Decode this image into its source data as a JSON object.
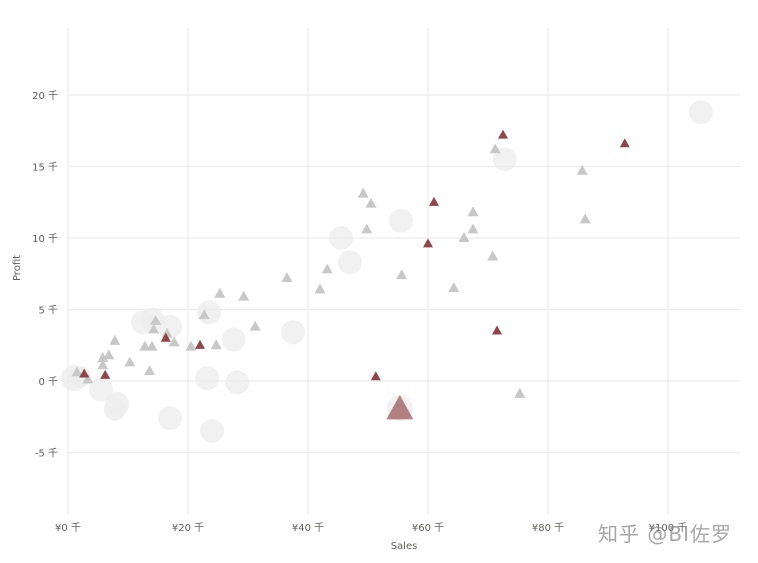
{
  "chart_data": {
    "type": "scatter",
    "title": "",
    "xlabel": "Sales",
    "ylabel": "Profit",
    "xlim": [
      0,
      112
    ],
    "ylim": [
      -9.5,
      25
    ],
    "x_unit": "thousand",
    "y_unit": "thousand",
    "x_ticks": [
      "¥0 千",
      "¥20 千",
      "¥40 千",
      "¥60 千",
      "¥80 千",
      "¥100 千"
    ],
    "x_tick_values": [
      0,
      20,
      40,
      60,
      80,
      100
    ],
    "y_ticks": [
      "20 千",
      "15 千",
      "10 千",
      "5 千",
      "0 千",
      "-5 千"
    ],
    "y_tick_values": [
      20,
      15,
      10,
      5,
      0,
      -5
    ],
    "grid": true,
    "legend": null,
    "colors": {
      "highlight": "#8b3a3f",
      "triangle_gray": "#c8c8c8",
      "bubble_gray": "#ececec",
      "grid": "#ececec",
      "tick_text": "#605e5c"
    },
    "series": [
      {
        "name": "bubbles",
        "marker": "circle",
        "points": [
          {
            "x": 1.0,
            "y": 0.2,
            "r": 13
          },
          {
            "x": 2.0,
            "y": 0.3,
            "r": 11
          },
          {
            "x": 5.5,
            "y": -0.6,
            "r": 12
          },
          {
            "x": 8.2,
            "y": -1.6,
            "r": 12
          },
          {
            "x": 7.8,
            "y": -2.0,
            "r": 11
          },
          {
            "x": 12.5,
            "y": 4.1,
            "r": 12
          },
          {
            "x": 14.0,
            "y": 4.3,
            "r": 12
          },
          {
            "x": 17.0,
            "y": 3.8,
            "r": 12
          },
          {
            "x": 17.0,
            "y": -2.6,
            "r": 12
          },
          {
            "x": 23.5,
            "y": 4.8,
            "r": 12
          },
          {
            "x": 23.2,
            "y": 0.2,
            "r": 12
          },
          {
            "x": 24.0,
            "y": -3.5,
            "r": 12
          },
          {
            "x": 27.6,
            "y": 2.9,
            "r": 12
          },
          {
            "x": 28.2,
            "y": -0.1,
            "r": 12
          },
          {
            "x": 37.5,
            "y": 3.4,
            "r": 12
          },
          {
            "x": 45.5,
            "y": 10.0,
            "r": 12
          },
          {
            "x": 47.0,
            "y": 8.3,
            "r": 12
          },
          {
            "x": 55.5,
            "y": 11.2,
            "r": 12
          },
          {
            "x": 55.3,
            "y": -1.9,
            "r": 13
          },
          {
            "x": 72.8,
            "y": 15.5,
            "r": 12
          },
          {
            "x": 105.5,
            "y": 18.8,
            "r": 12
          }
        ]
      },
      {
        "name": "gray triangles",
        "marker": "triangle",
        "points": [
          {
            "x": 1.5,
            "y": 0.6
          },
          {
            "x": 3.3,
            "y": 0.1
          },
          {
            "x": 5.8,
            "y": 1.6
          },
          {
            "x": 5.8,
            "y": 1.1
          },
          {
            "x": 6.8,
            "y": 1.8
          },
          {
            "x": 7.8,
            "y": 2.8
          },
          {
            "x": 10.3,
            "y": 1.3
          },
          {
            "x": 12.8,
            "y": 2.4
          },
          {
            "x": 13.6,
            "y": 0.7
          },
          {
            "x": 14.0,
            "y": 2.4
          },
          {
            "x": 14.3,
            "y": 3.6
          },
          {
            "x": 14.6,
            "y": 4.2
          },
          {
            "x": 16.5,
            "y": 3.3
          },
          {
            "x": 17.7,
            "y": 2.7
          },
          {
            "x": 20.5,
            "y": 2.4
          },
          {
            "x": 22.7,
            "y": 4.6
          },
          {
            "x": 24.7,
            "y": 2.5
          },
          {
            "x": 25.3,
            "y": 6.1
          },
          {
            "x": 29.3,
            "y": 5.9
          },
          {
            "x": 31.2,
            "y": 3.8
          },
          {
            "x": 36.5,
            "y": 7.2
          },
          {
            "x": 42.0,
            "y": 6.4
          },
          {
            "x": 43.2,
            "y": 7.8
          },
          {
            "x": 49.2,
            "y": 13.1
          },
          {
            "x": 49.8,
            "y": 10.6
          },
          {
            "x": 50.5,
            "y": 12.4
          },
          {
            "x": 55.6,
            "y": 7.4
          },
          {
            "x": 64.3,
            "y": 6.5
          },
          {
            "x": 66.0,
            "y": 10.0
          },
          {
            "x": 67.5,
            "y": 10.6
          },
          {
            "x": 67.5,
            "y": 11.8
          },
          {
            "x": 70.8,
            "y": 8.7
          },
          {
            "x": 71.2,
            "y": 16.2
          },
          {
            "x": 75.3,
            "y": -0.9
          },
          {
            "x": 85.7,
            "y": 14.7
          },
          {
            "x": 86.2,
            "y": 11.3
          }
        ]
      },
      {
        "name": "highlighted triangles",
        "marker": "triangle",
        "points": [
          {
            "x": 2.7,
            "y": 0.5,
            "size": 1
          },
          {
            "x": 6.2,
            "y": 0.4,
            "size": 1
          },
          {
            "x": 16.3,
            "y": 3.0,
            "size": 1
          },
          {
            "x": 22.0,
            "y": 2.5,
            "size": 1
          },
          {
            "x": 51.3,
            "y": 0.3,
            "size": 1
          },
          {
            "x": 60.0,
            "y": 9.6,
            "size": 1
          },
          {
            "x": 61.0,
            "y": 12.5,
            "size": 1
          },
          {
            "x": 71.5,
            "y": 3.5,
            "size": 1
          },
          {
            "x": 72.5,
            "y": 17.2,
            "size": 1
          },
          {
            "x": 92.8,
            "y": 16.6,
            "size": 1
          },
          {
            "x": 55.3,
            "y": -2.0,
            "size": 3
          }
        ]
      }
    ]
  },
  "watermark": "知乎 @BI佐罗"
}
